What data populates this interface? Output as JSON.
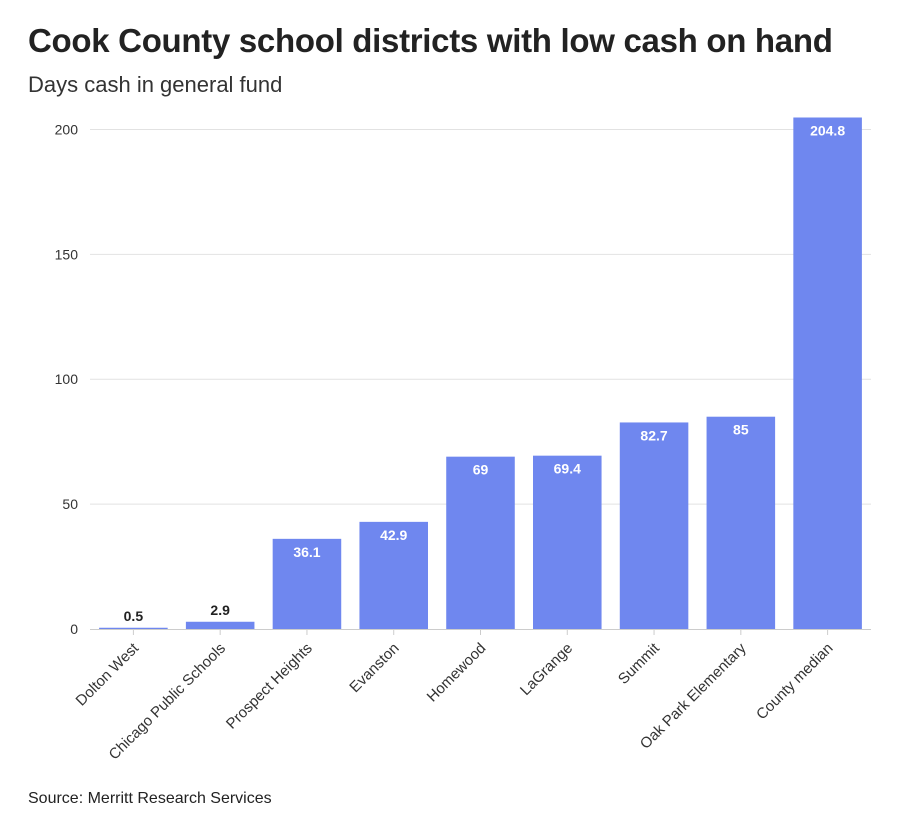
{
  "chart_data": {
    "type": "bar",
    "title": "Cook County school districts with low cash on hand",
    "subtitle": "Days cash in general fund",
    "categories": [
      "Dolton West",
      "Chicago Public Schools",
      "Prospect Heights",
      "Evanston",
      "Homewood",
      "LaGrange",
      "Summit",
      "Oak Park Elementary",
      "County median"
    ],
    "values": [
      0.5,
      2.9,
      36.1,
      42.9,
      69,
      69.4,
      82.7,
      85,
      204.8
    ],
    "value_labels": [
      "0.5",
      "2.9",
      "36.1",
      "42.9",
      "69",
      "69.4",
      "82.7",
      "85",
      "204.8"
    ],
    "yticks": [
      0,
      50,
      100,
      150,
      200
    ],
    "ylim": [
      0,
      205
    ],
    "xlabel": "",
    "ylabel": "",
    "grid": true,
    "bar_color": "#6f87ef",
    "source": "Source: Merritt Research Services"
  }
}
